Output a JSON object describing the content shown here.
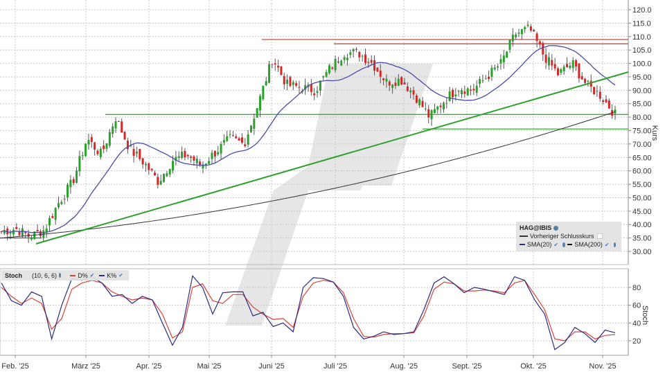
{
  "instrument": "HAG@IBIS",
  "price_panel": {
    "axis_title": "Kurs",
    "y_ticks": [
      "120.0",
      "115.0",
      "110.0",
      "105.0",
      "100.0",
      "95.00",
      "90.00",
      "85.00",
      "80.00",
      "75.00",
      "70.00",
      "65.00",
      "60.00",
      "55.00",
      "50.00",
      "45.00",
      "40.00",
      "35.00",
      "30.00"
    ],
    "legend": {
      "title": "HAG@IBIS",
      "prev_close_label": "Vorheriger Schlusskurs",
      "sma20_label": "SMA(20)",
      "sma200_label": "SMA(200)"
    }
  },
  "stoch_panel": {
    "axis_title": "Stoch",
    "y_ticks": [
      "80",
      "60",
      "40",
      "20"
    ],
    "legend": {
      "title": "Stoch",
      "params": "(10, 6, 6)",
      "d_label": "D%",
      "k_label": "K%"
    }
  },
  "x_axis": {
    "labels": [
      "Feb. '25",
      "März '25",
      "Apr. '25",
      "Mai '25",
      "Juni '25",
      "Juli '25",
      "Aug. '25",
      "Sept. '25",
      "Okt. '25",
      "Nov. '25"
    ]
  },
  "colors": {
    "up": "#2ca02c",
    "down": "#d62728",
    "sma20": "#4b4ba8",
    "sma200": "#333333",
    "support": "#2ca02c",
    "resistance": "#c0392b",
    "stoch_k": "#2b2b80",
    "stoch_d": "#d9433a",
    "grid": "#c8c8c8"
  },
  "chart_data": [
    {
      "type": "candlestick",
      "title": "HAG@IBIS",
      "ylabel": "Kurs",
      "ylim": [
        27,
        122
      ],
      "x_categories": [
        "Feb. '25",
        "März '25",
        "Apr. '25",
        "Mai '25",
        "Juni '25",
        "Juli '25",
        "Aug. '25",
        "Sept. '25",
        "Okt. '25",
        "Nov. '25"
      ],
      "series_close": [
        {
          "x": "2025-01-27",
          "close": 37.5
        },
        {
          "x": "2025-02-03",
          "close": 38.5
        },
        {
          "x": "2025-02-10",
          "close": 35.5
        },
        {
          "x": "2025-02-14",
          "close": 38.0
        },
        {
          "x": "2025-02-17",
          "close": 48.0
        },
        {
          "x": "2025-02-24",
          "close": 56.0
        },
        {
          "x": "2025-03-03",
          "close": 72.0
        },
        {
          "x": "2025-03-10",
          "close": 66.0
        },
        {
          "x": "2025-03-17",
          "close": 80.0
        },
        {
          "x": "2025-03-24",
          "close": 68.0
        },
        {
          "x": "2025-03-31",
          "close": 63.0
        },
        {
          "x": "2025-04-07",
          "close": 56.0
        },
        {
          "x": "2025-04-14",
          "close": 64.0
        },
        {
          "x": "2025-04-21",
          "close": 66.0
        },
        {
          "x": "2025-04-28",
          "close": 62.0
        },
        {
          "x": "2025-05-05",
          "close": 67.0
        },
        {
          "x": "2025-05-12",
          "close": 72.0
        },
        {
          "x": "2025-05-19",
          "close": 70.0
        },
        {
          "x": "2025-05-26",
          "close": 85.0
        },
        {
          "x": "2025-06-02",
          "close": 102.0
        },
        {
          "x": "2025-06-09",
          "close": 92.0
        },
        {
          "x": "2025-06-16",
          "close": 91.0
        },
        {
          "x": "2025-06-23",
          "close": 90.0
        },
        {
          "x": "2025-06-30",
          "close": 98.0
        },
        {
          "x": "2025-07-07",
          "close": 104.0
        },
        {
          "x": "2025-07-14",
          "close": 104.0
        },
        {
          "x": "2025-07-21",
          "close": 100.0
        },
        {
          "x": "2025-07-28",
          "close": 93.0
        },
        {
          "x": "2025-08-04",
          "close": 94.0
        },
        {
          "x": "2025-08-11",
          "close": 88.0
        },
        {
          "x": "2025-08-18",
          "close": 80.0
        },
        {
          "x": "2025-08-25",
          "close": 86.0
        },
        {
          "x": "2025-09-01",
          "close": 91.0
        },
        {
          "x": "2025-09-08",
          "close": 90.0
        },
        {
          "x": "2025-09-15",
          "close": 95.0
        },
        {
          "x": "2025-09-22",
          "close": 100.0
        },
        {
          "x": "2025-09-29",
          "close": 111.0
        },
        {
          "x": "2025-10-06",
          "close": 113.0
        },
        {
          "x": "2025-10-13",
          "close": 103.0
        },
        {
          "x": "2025-10-20",
          "close": 96.0
        },
        {
          "x": "2025-10-27",
          "close": 100.0
        },
        {
          "x": "2025-11-03",
          "close": 92.0
        },
        {
          "x": "2025-11-10",
          "close": 88.0
        },
        {
          "x": "2025-11-14",
          "close": 81.0
        }
      ],
      "overlays": {
        "sma20": "blue moving average tracking price, peak ~104 mid-Oct, ending ~93",
        "sma200": "black line rising from ~35 (Feb) to ~82 (mid-Nov)",
        "support_levels": [
          81.0,
          75.6
        ],
        "resistance_levels": [
          108.9,
          107.3
        ],
        "trendline": {
          "from": {
            "x": "2025-02-12",
            "y": 33
          },
          "to": {
            "x": "2025-11-18",
            "y": 96
          }
        }
      }
    },
    {
      "type": "line",
      "title": "Stoch (10, 6, 6)",
      "ylabel": "Stoch",
      "ylim": [
        0,
        100
      ],
      "series": [
        {
          "name": "K%",
          "values": [
            85,
            65,
            60,
            75,
            70,
            22,
            60,
            90,
            88,
            92,
            85,
            70,
            72,
            62,
            70,
            66,
            40,
            15,
            35,
            93,
            80,
            50,
            74,
            75,
            75,
            48,
            52,
            36,
            40,
            30,
            80,
            91,
            90,
            86,
            70,
            35,
            22,
            25,
            30,
            27,
            28,
            30,
            55,
            85,
            92,
            84,
            74,
            80,
            78,
            75,
            72,
            92,
            88,
            66,
            50,
            10,
            18,
            35,
            28,
            18,
            32,
            29
          ]
        },
        {
          "name": "D%",
          "values": [
            80,
            70,
            62,
            68,
            62,
            33,
            45,
            78,
            85,
            88,
            85,
            75,
            70,
            66,
            68,
            66,
            50,
            23,
            30,
            80,
            84,
            65,
            62,
            72,
            72,
            58,
            50,
            44,
            45,
            35,
            70,
            85,
            88,
            86,
            74,
            45,
            25,
            24,
            27,
            28,
            28,
            29,
            48,
            78,
            86,
            84,
            76,
            76,
            77,
            76,
            74,
            85,
            88,
            72,
            55,
            22,
            20,
            30,
            30,
            22,
            26,
            27
          ]
        }
      ],
      "reference_levels": [
        20,
        40,
        60,
        80
      ]
    }
  ]
}
